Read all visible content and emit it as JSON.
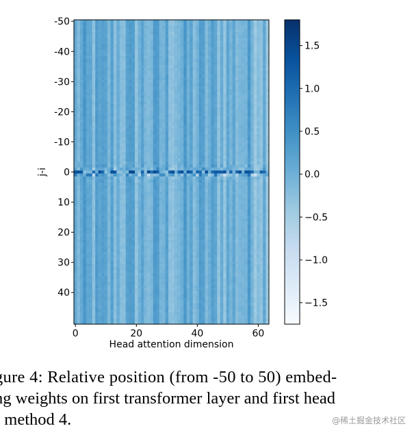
{
  "chart_data": {
    "type": "heatmap",
    "title": "",
    "xlabel": "Head attention dimension",
    "ylabel": "j-i",
    "x_range": [
      0,
      63
    ],
    "y_range": [
      -50,
      50
    ],
    "x_ticks": [
      "0",
      "20",
      "40",
      "60"
    ],
    "y_ticks": [
      "-50",
      "-40",
      "-30",
      "-20",
      "-10",
      "0",
      "10",
      "20",
      "30",
      "40"
    ],
    "y_inverted": true,
    "colormap": "Blues",
    "colorbar": {
      "range": [
        -1.75,
        1.8
      ],
      "ticks": [
        "1.5",
        "1.0",
        "0.5",
        "0.0",
        "−0.5",
        "−1.0",
        "−1.5"
      ]
    },
    "description_values": {
      "background_value": 0.0,
      "diagonal_row": 0,
      "diagonal_peak": 1.5
    }
  },
  "caption": {
    "line1": "gure 4:  Relative position (from -50 to 50) embed-",
    "line2": "ng weights on first transformer layer and first head",
    "line3": "r method 4."
  },
  "watermark": "@稀土掘金技术社区",
  "colors": {
    "axis": "#000000",
    "low": "#f7fbff",
    "mid": "#6baed6",
    "high": "#08306b"
  }
}
